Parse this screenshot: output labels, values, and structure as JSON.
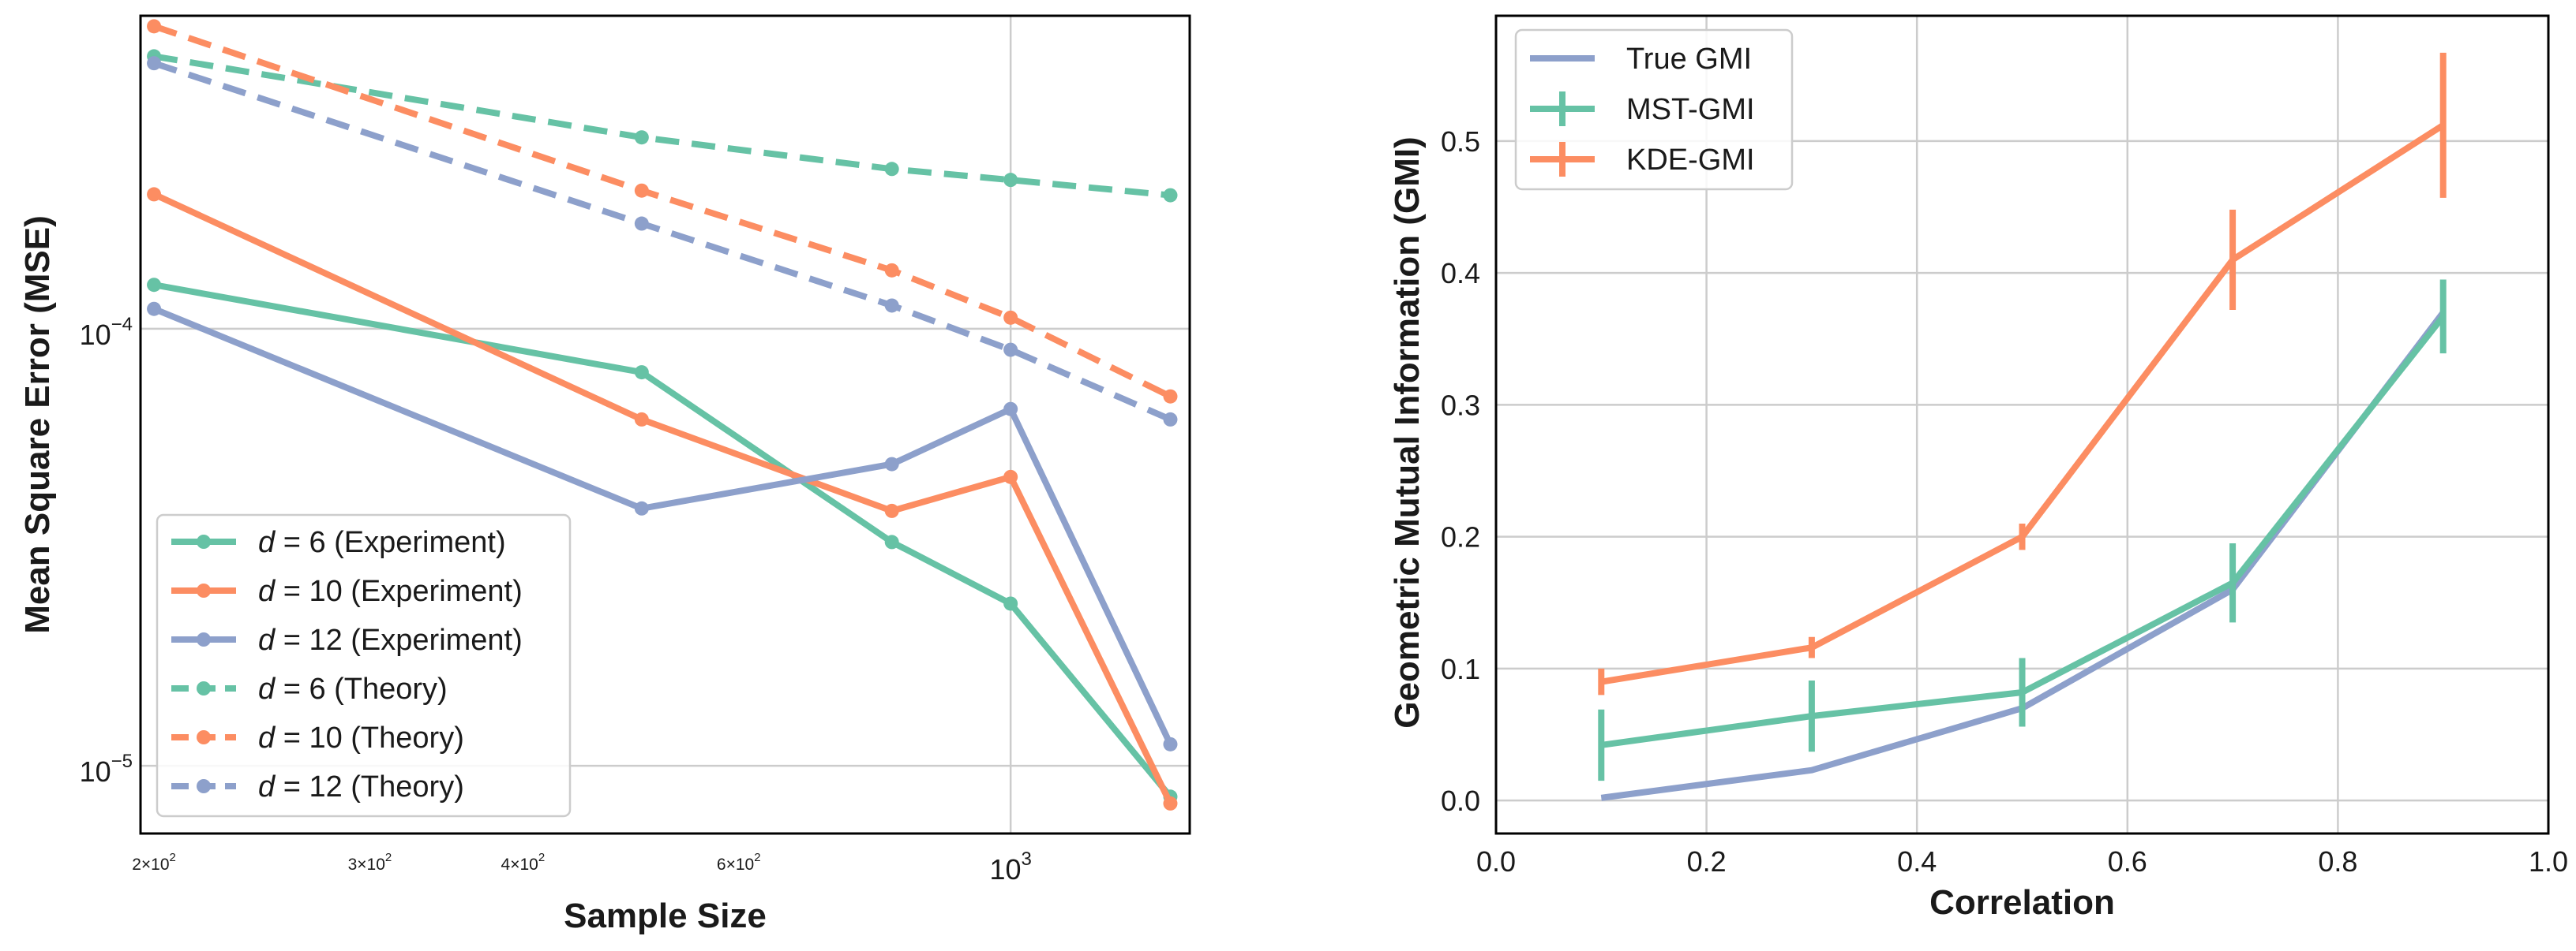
{
  "colors": {
    "green": "#66c2a5",
    "orange": "#fc8d62",
    "blue": "#8da0cb",
    "grid": "#cccccc",
    "frame": "#000000"
  },
  "chart_data": [
    {
      "type": "line",
      "xlabel": "Sample Size",
      "ylabel": "Mean Square Error (MSE)",
      "xscale": "log",
      "yscale": "log",
      "xlim": [
        195,
        1400
      ],
      "ylim": [
        7e-06,
        0.00052
      ],
      "grid": true,
      "legend_position": "lower-left",
      "x_ticks": [
        {
          "value": 200,
          "base": "2×10",
          "exp": "2",
          "size": "small"
        },
        {
          "value": 300,
          "base": "3×10",
          "exp": "2",
          "size": "small"
        },
        {
          "value": 400,
          "base": "4×10",
          "exp": "2",
          "size": "small"
        },
        {
          "value": 600,
          "base": "6×10",
          "exp": "2",
          "size": "small"
        },
        {
          "value": 1000,
          "base": "10",
          "exp": "3",
          "size": "large",
          "grid": true
        }
      ],
      "y_ticks": [
        {
          "value": 0.0001,
          "base": "10",
          "exp": "−4",
          "grid": true
        },
        {
          "value": 1e-05,
          "base": "10",
          "exp": "−5",
          "grid": true
        }
      ],
      "x": [
        200,
        500,
        800,
        1000,
        1350
      ],
      "series": [
        {
          "name": "d = 6 (Experiment)",
          "var": "d",
          "rest": " = 6 (Experiment)",
          "color": "green",
          "dashed": false,
          "values": [
            0.000126,
            7.95e-05,
            3.25e-05,
            2.35e-05,
            8.5e-06
          ]
        },
        {
          "name": "d = 10 (Experiment)",
          "var": "d",
          "rest": " = 10 (Experiment)",
          "color": "orange",
          "dashed": false,
          "values": [
            0.000203,
            6.2e-05,
            3.83e-05,
            4.58e-05,
            8.2e-06
          ]
        },
        {
          "name": "d = 12 (Experiment)",
          "var": "d",
          "rest": " = 12 (Experiment)",
          "color": "blue",
          "dashed": false,
          "values": [
            0.000111,
            3.88e-05,
            4.9e-05,
            6.55e-05,
            1.12e-05
          ]
        },
        {
          "name": "d = 6 (Theory)",
          "var": "d",
          "rest": " = 6 (Theory)",
          "color": "green",
          "dashed": true,
          "values": [
            0.00042,
            0.000274,
            0.000232,
            0.000219,
            0.000202
          ]
        },
        {
          "name": "d = 10 (Theory)",
          "var": "d",
          "rest": " = 10 (Theory)",
          "color": "orange",
          "dashed": true,
          "values": [
            0.000492,
            0.000207,
            0.000136,
            0.000106,
            7e-05
          ]
        },
        {
          "name": "d = 12 (Theory)",
          "var": "d",
          "rest": " = 12 (Theory)",
          "color": "blue",
          "dashed": true,
          "values": [
            0.000405,
            0.000174,
            0.000113,
            8.95e-05,
            6.2e-05
          ]
        }
      ]
    },
    {
      "type": "line",
      "xlabel": "Correlation",
      "ylabel": "Geometric Mutual Information (GMI)",
      "xlim": [
        0.0,
        1.0
      ],
      "ylim": [
        -0.025,
        0.595
      ],
      "grid": true,
      "legend_position": "top-left",
      "x_ticks": [
        "0.0",
        "0.2",
        "0.4",
        "0.6",
        "0.8",
        "1.0"
      ],
      "y_ticks": [
        "0.0",
        "0.1",
        "0.2",
        "0.3",
        "0.4",
        "0.5"
      ],
      "x": [
        0.1,
        0.3,
        0.5,
        0.7,
        0.9
      ],
      "series": [
        {
          "name": "True GMI",
          "color": "blue",
          "errorbars": false,
          "values": [
            0.002,
            0.023,
            0.07,
            0.16,
            0.37
          ],
          "errors": [
            0,
            0,
            0,
            0,
            0
          ]
        },
        {
          "name": "MST-GMI",
          "color": "green",
          "errorbars": true,
          "values": [
            0.042,
            0.064,
            0.082,
            0.165,
            0.367
          ],
          "errors": [
            0.027,
            0.027,
            0.026,
            0.03,
            0.028
          ]
        },
        {
          "name": "KDE-GMI",
          "color": "orange",
          "errorbars": true,
          "values": [
            0.09,
            0.116,
            0.2,
            0.41,
            0.512
          ],
          "errors": [
            0.01,
            0.008,
            0.01,
            0.038,
            0.055
          ]
        }
      ]
    }
  ]
}
